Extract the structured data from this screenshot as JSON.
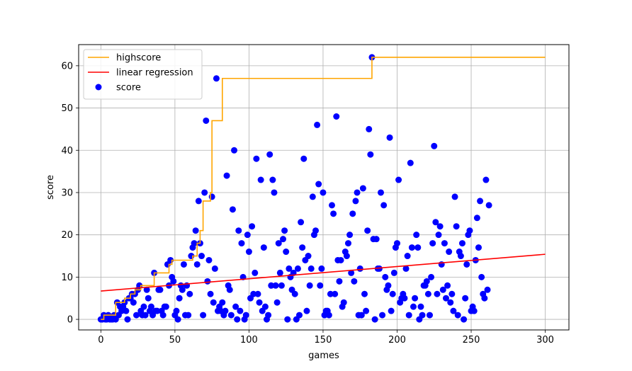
{
  "chart_data": {
    "type": "scatter",
    "title": "",
    "xlabel": "games",
    "ylabel": "score",
    "xlim": [
      -15,
      316
    ],
    "ylim": [
      -2.5,
      65
    ],
    "xticks": [
      "0",
      "50",
      "100",
      "150",
      "200",
      "250",
      "300"
    ],
    "yticks": [
      "0",
      "10",
      "20",
      "30",
      "40",
      "50",
      "60"
    ],
    "grid": true,
    "legend_position": "upper-left",
    "legend": [
      {
        "label": "highscore",
        "kind": "line",
        "color": "#ffa500"
      },
      {
        "label": "linear regression",
        "kind": "line",
        "color": "#ff0000"
      },
      {
        "label": "score",
        "kind": "marker",
        "color": "#0000ff"
      }
    ],
    "series": [
      {
        "name": "highscore",
        "type": "step",
        "color": "#ffa500",
        "x": [
          0,
          2,
          2,
          10,
          10,
          16,
          16,
          20,
          20,
          23,
          23,
          27,
          27,
          36,
          36,
          46,
          46,
          48,
          48,
          62,
          62,
          65,
          65,
          67,
          67,
          69,
          69,
          74,
          74,
          75,
          75,
          82,
          82,
          183,
          183,
          300
        ],
        "y": [
          0,
          0,
          1,
          1,
          4,
          4,
          5,
          5,
          6,
          6,
          7,
          7,
          8,
          8,
          11,
          11,
          13,
          13,
          14,
          14,
          15,
          15,
          18,
          18,
          21,
          21,
          28,
          28,
          30,
          30,
          47,
          47,
          57,
          57,
          62,
          62
        ]
      },
      {
        "name": "linear regression",
        "type": "line",
        "color": "#ff0000",
        "x": [
          0,
          300
        ],
        "y": [
          6.7,
          15.4
        ]
      },
      {
        "name": "score",
        "type": "scatter",
        "color": "#0000ff",
        "points": [
          [
            0,
            0
          ],
          [
            1,
            0
          ],
          [
            2,
            1
          ],
          [
            3,
            0
          ],
          [
            4,
            0
          ],
          [
            5,
            1
          ],
          [
            6,
            0
          ],
          [
            7,
            0
          ],
          [
            8,
            0
          ],
          [
            9,
            1
          ],
          [
            10,
            0
          ],
          [
            11,
            4
          ],
          [
            12,
            1
          ],
          [
            13,
            3
          ],
          [
            14,
            2
          ],
          [
            15,
            3
          ],
          [
            16,
            4
          ],
          [
            17,
            2
          ],
          [
            18,
            0
          ],
          [
            19,
            5
          ],
          [
            20,
            5
          ],
          [
            21,
            6
          ],
          [
            22,
            4
          ],
          [
            23,
            6
          ],
          [
            24,
            1
          ],
          [
            25,
            7
          ],
          [
            26,
            8
          ],
          [
            27,
            2
          ],
          [
            28,
            1
          ],
          [
            29,
            3
          ],
          [
            30,
            1
          ],
          [
            31,
            7
          ],
          [
            32,
            5
          ],
          [
            33,
            2
          ],
          [
            34,
            3
          ],
          [
            35,
            1
          ],
          [
            36,
            11
          ],
          [
            37,
            2
          ],
          [
            38,
            2
          ],
          [
            39,
            7
          ],
          [
            40,
            7
          ],
          [
            41,
            2
          ],
          [
            42,
            1
          ],
          [
            43,
            3
          ],
          [
            44,
            3
          ],
          [
            45,
            13
          ],
          [
            46,
            8
          ],
          [
            47,
            14
          ],
          [
            48,
            10
          ],
          [
            49,
            9
          ],
          [
            50,
            1
          ],
          [
            51,
            2
          ],
          [
            52,
            0
          ],
          [
            53,
            5
          ],
          [
            54,
            8
          ],
          [
            55,
            7
          ],
          [
            56,
            13
          ],
          [
            57,
            1
          ],
          [
            58,
            8
          ],
          [
            59,
            1
          ],
          [
            60,
            6
          ],
          [
            61,
            15
          ],
          [
            62,
            17
          ],
          [
            63,
            18
          ],
          [
            64,
            21
          ],
          [
            65,
            13
          ],
          [
            66,
            28
          ],
          [
            67,
            18
          ],
          [
            68,
            15
          ],
          [
            69,
            1
          ],
          [
            70,
            30
          ],
          [
            71,
            47
          ],
          [
            72,
            9
          ],
          [
            73,
            14
          ],
          [
            74,
            6
          ],
          [
            75,
            29
          ],
          [
            76,
            4
          ],
          [
            77,
            12
          ],
          [
            78,
            57
          ],
          [
            79,
            2
          ],
          [
            80,
            3
          ],
          [
            81,
            2
          ],
          [
            82,
            4
          ],
          [
            83,
            1
          ],
          [
            84,
            2
          ],
          [
            85,
            34
          ],
          [
            86,
            8
          ],
          [
            87,
            7
          ],
          [
            88,
            1
          ],
          [
            89,
            26
          ],
          [
            90,
            40
          ],
          [
            91,
            3
          ],
          [
            92,
            0
          ],
          [
            93,
            21
          ],
          [
            94,
            2
          ],
          [
            95,
            18
          ],
          [
            96,
            10
          ],
          [
            97,
            0
          ],
          [
            98,
            1
          ],
          [
            99,
            20
          ],
          [
            100,
            16
          ],
          [
            101,
            5
          ],
          [
            102,
            22
          ],
          [
            103,
            6
          ],
          [
            104,
            11
          ],
          [
            105,
            38
          ],
          [
            106,
            6
          ],
          [
            107,
            4
          ],
          [
            108,
            33
          ],
          [
            109,
            2
          ],
          [
            110,
            17
          ],
          [
            111,
            3
          ],
          [
            112,
            0
          ],
          [
            113,
            1
          ],
          [
            114,
            39
          ],
          [
            115,
            8
          ],
          [
            116,
            33
          ],
          [
            117,
            30
          ],
          [
            118,
            8
          ],
          [
            119,
            4
          ],
          [
            120,
            18
          ],
          [
            121,
            11
          ],
          [
            122,
            8
          ],
          [
            123,
            19
          ],
          [
            124,
            21
          ],
          [
            125,
            16
          ],
          [
            126,
            0
          ],
          [
            127,
            12
          ],
          [
            128,
            10
          ],
          [
            129,
            7
          ],
          [
            130,
            11
          ],
          [
            131,
            6
          ],
          [
            132,
            0
          ],
          [
            133,
            12
          ],
          [
            134,
            1
          ],
          [
            135,
            23
          ],
          [
            136,
            17
          ],
          [
            137,
            38
          ],
          [
            138,
            14
          ],
          [
            139,
            2
          ],
          [
            140,
            15
          ],
          [
            141,
            8
          ],
          [
            142,
            12
          ],
          [
            143,
            29
          ],
          [
            144,
            20
          ],
          [
            145,
            21
          ],
          [
            146,
            46
          ],
          [
            147,
            32
          ],
          [
            148,
            8
          ],
          [
            149,
            12
          ],
          [
            150,
            30
          ],
          [
            151,
            1
          ],
          [
            152,
            2
          ],
          [
            153,
            2
          ],
          [
            154,
            1
          ],
          [
            155,
            6
          ],
          [
            156,
            27
          ],
          [
            157,
            25
          ],
          [
            158,
            6
          ],
          [
            159,
            48
          ],
          [
            160,
            14
          ],
          [
            161,
            9
          ],
          [
            162,
            14
          ],
          [
            163,
            3
          ],
          [
            164,
            4
          ],
          [
            165,
            16
          ],
          [
            166,
            15
          ],
          [
            167,
            18
          ],
          [
            168,
            20
          ],
          [
            169,
            11
          ],
          [
            170,
            25
          ],
          [
            171,
            9
          ],
          [
            172,
            28
          ],
          [
            173,
            30
          ],
          [
            174,
            1
          ],
          [
            175,
            12
          ],
          [
            176,
            1
          ],
          [
            177,
            31
          ],
          [
            178,
            6
          ],
          [
            179,
            2
          ],
          [
            180,
            21
          ],
          [
            181,
            45
          ],
          [
            182,
            39
          ],
          [
            183,
            62
          ],
          [
            184,
            19
          ],
          [
            185,
            0
          ],
          [
            186,
            19
          ],
          [
            187,
            12
          ],
          [
            188,
            12
          ],
          [
            189,
            30
          ],
          [
            190,
            1
          ],
          [
            191,
            27
          ],
          [
            192,
            10
          ],
          [
            193,
            7
          ],
          [
            194,
            8
          ],
          [
            195,
            43
          ],
          [
            196,
            2
          ],
          [
            197,
            6
          ],
          [
            198,
            11
          ],
          [
            199,
            17
          ],
          [
            200,
            18
          ],
          [
            201,
            33
          ],
          [
            202,
            4
          ],
          [
            203,
            5
          ],
          [
            204,
            6
          ],
          [
            205,
            5
          ],
          [
            206,
            12
          ],
          [
            207,
            15
          ],
          [
            208,
            1
          ],
          [
            209,
            37
          ],
          [
            210,
            17
          ],
          [
            211,
            3
          ],
          [
            212,
            5
          ],
          [
            213,
            20
          ],
          [
            214,
            17
          ],
          [
            215,
            0
          ],
          [
            216,
            3
          ],
          [
            217,
            1
          ],
          [
            218,
            8
          ],
          [
            219,
            8
          ],
          [
            220,
            9
          ],
          [
            221,
            6
          ],
          [
            222,
            1
          ],
          [
            223,
            10
          ],
          [
            224,
            18
          ],
          [
            225,
            41
          ],
          [
            226,
            23
          ],
          [
            227,
            6
          ],
          [
            228,
            20
          ],
          [
            229,
            22
          ],
          [
            230,
            13
          ],
          [
            231,
            7
          ],
          [
            232,
            18
          ],
          [
            233,
            5
          ],
          [
            234,
            8
          ],
          [
            235,
            16
          ],
          [
            236,
            4
          ],
          [
            237,
            6
          ],
          [
            238,
            2
          ],
          [
            239,
            29
          ],
          [
            240,
            22
          ],
          [
            241,
            1
          ],
          [
            242,
            16
          ],
          [
            243,
            15
          ],
          [
            244,
            18
          ],
          [
            245,
            0
          ],
          [
            246,
            5
          ],
          [
            247,
            13
          ],
          [
            248,
            20
          ],
          [
            249,
            21
          ],
          [
            250,
            2
          ],
          [
            251,
            3
          ],
          [
            252,
            2
          ],
          [
            253,
            14
          ],
          [
            254,
            24
          ],
          [
            255,
            17
          ],
          [
            256,
            28
          ],
          [
            257,
            10
          ],
          [
            258,
            6
          ],
          [
            259,
            5
          ],
          [
            260,
            33
          ],
          [
            261,
            7
          ],
          [
            262,
            27
          ]
        ]
      }
    ]
  }
}
